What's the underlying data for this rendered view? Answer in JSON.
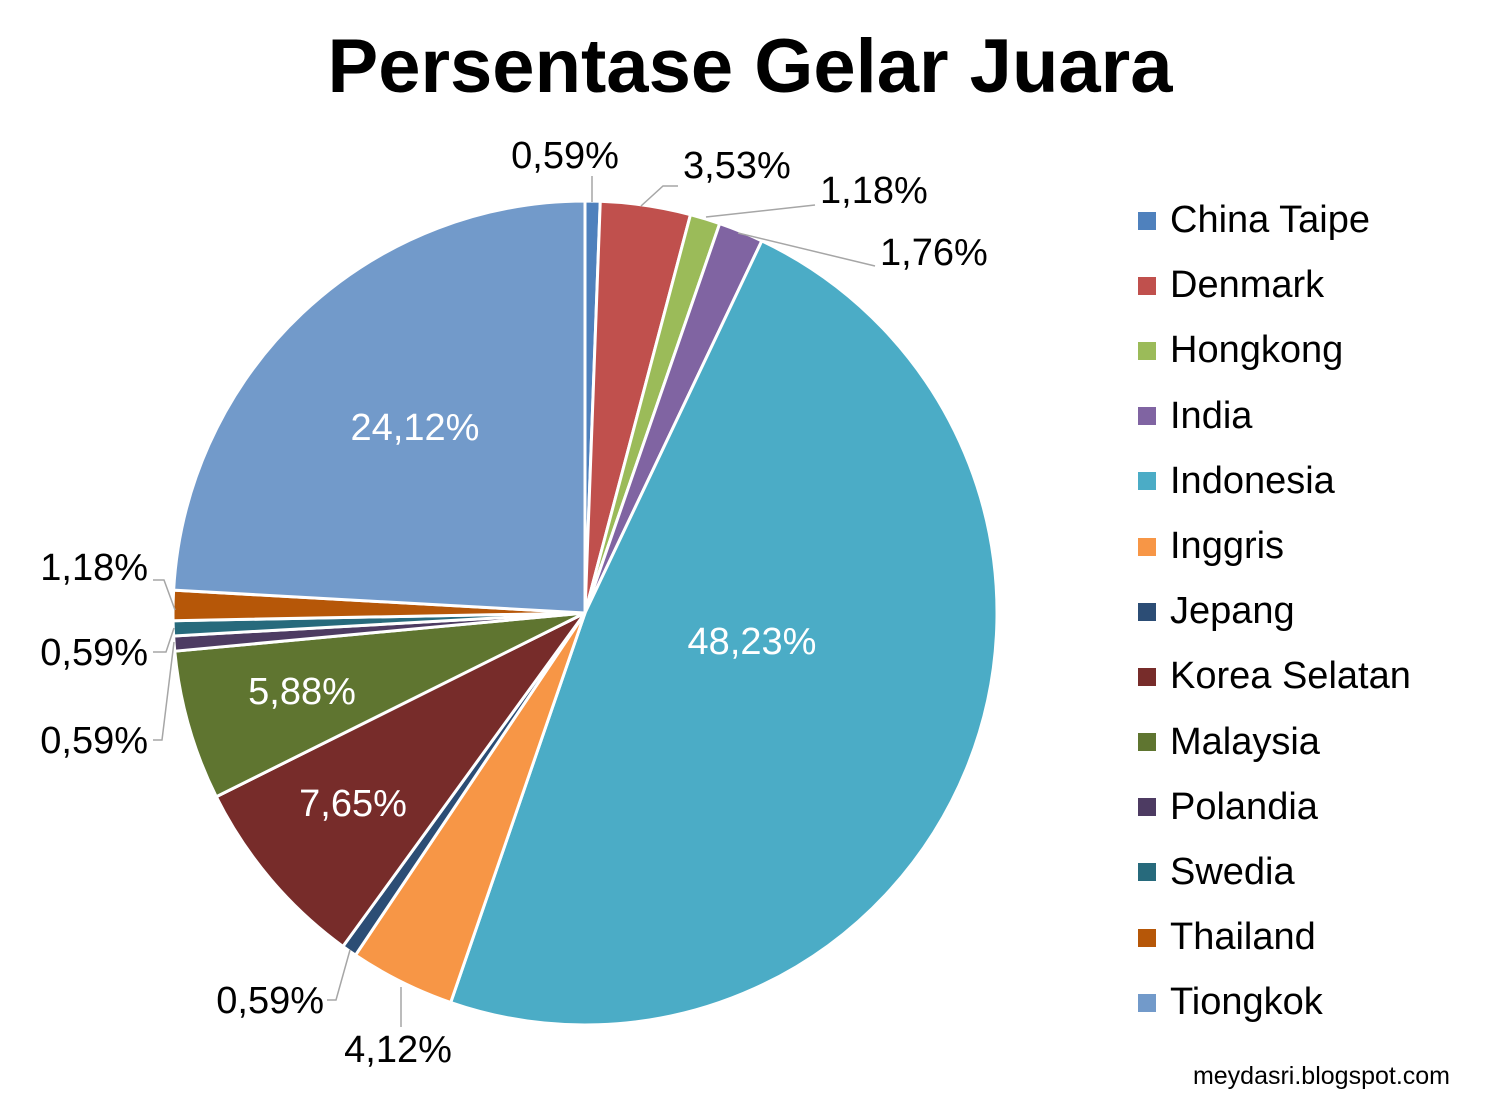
{
  "chart_data": {
    "type": "pie",
    "title": "Persentase Gelar Juara",
    "start_angle_deg": 0,
    "direction": "clockwise",
    "slices": [
      {
        "name": "China Taipe",
        "value": 0.59,
        "label": "0,59%",
        "color": "#4F81BD",
        "label_style": "outside"
      },
      {
        "name": "Denmark",
        "value": 3.53,
        "label": "3,53%",
        "color": "#C0504D",
        "label_style": "outside"
      },
      {
        "name": "Hongkong",
        "value": 1.18,
        "label": "1,18%",
        "color": "#9BBB59",
        "label_style": "outside"
      },
      {
        "name": "India",
        "value": 1.76,
        "label": "1,76%",
        "color": "#8064A2",
        "label_style": "outside"
      },
      {
        "name": "Indonesia",
        "value": 48.23,
        "label": "48,23%",
        "color": "#4BACC6",
        "label_style": "inside"
      },
      {
        "name": "Inggris",
        "value": 4.12,
        "label": "4,12%",
        "color": "#F79646",
        "label_style": "outside"
      },
      {
        "name": "Jepang",
        "value": 0.59,
        "label": "0,59%",
        "color": "#2C4D75",
        "label_style": "outside"
      },
      {
        "name": "Korea Selatan",
        "value": 7.65,
        "label": "7,65%",
        "color": "#772C2A",
        "label_style": "inside"
      },
      {
        "name": "Malaysia",
        "value": 5.88,
        "label": "5,88%",
        "color": "#5F7530",
        "label_style": "inside"
      },
      {
        "name": "Polandia",
        "value": 0.59,
        "label": "0,59%",
        "color": "#4D3B62",
        "label_style": "outside"
      },
      {
        "name": "Swedia",
        "value": 0.59,
        "label": "0,59%",
        "color": "#276A7C",
        "label_style": "outside"
      },
      {
        "name": "Thailand",
        "value": 1.18,
        "label": "1,18%",
        "color": "#B65708",
        "label_style": "outside"
      },
      {
        "name": "Tiongkok",
        "value": 24.12,
        "label": "24,12%",
        "color": "#729ACA",
        "label_style": "inside"
      }
    ],
    "legend_position": "right"
  },
  "watermark": "meydasri.blogspot.com"
}
